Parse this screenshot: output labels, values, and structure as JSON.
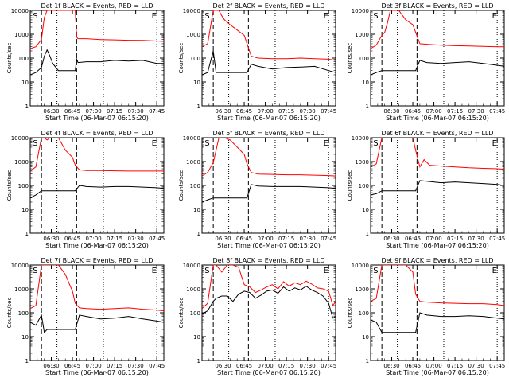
{
  "figure": {
    "ylabel": "Counts/sec",
    "xlabel": "Start Time (06-Mar-07 06:15:20)",
    "xticks": [
      "06:30",
      "06:45",
      "07:00",
      "07:15",
      "07:30",
      "07:45"
    ],
    "yticks": [
      "1",
      "10",
      "100",
      "1000",
      "10000"
    ],
    "marker_E": "E",
    "marker_S": "S"
  },
  "chart_data": [
    {
      "type": "line",
      "title": "Det 1f BLACK = Events, RED = LLD",
      "xlabel": "Start Time (06-Mar-07 06:15:20)",
      "ylabel": "Counts/sec",
      "ylim": [
        1,
        10000
      ],
      "yscale": "log",
      "series": [
        {
          "name": "Events",
          "color": "#000000",
          "x": [
            0,
            4,
            8,
            10,
            12,
            14,
            16,
            20,
            25,
            30,
            32,
            33,
            34,
            40,
            50,
            60,
            70,
            80,
            90,
            95
          ],
          "y": [
            20,
            25,
            40,
            120,
            220,
            120,
            60,
            30,
            30,
            30,
            30,
            90,
            65,
            70,
            70,
            80,
            75,
            80,
            60,
            60
          ]
        },
        {
          "name": "LLD",
          "color": "#ff0000",
          "x": [
            0,
            4,
            8,
            10,
            12,
            14,
            16,
            20,
            25,
            30,
            32,
            33,
            34,
            40,
            50,
            60,
            70,
            80,
            90,
            95
          ],
          "y": [
            250,
            300,
            600,
            5000,
            12000,
            12000,
            12000,
            12000,
            12000,
            12000,
            12000,
            750,
            650,
            650,
            600,
            580,
            560,
            550,
            520,
            500
          ]
        }
      ]
    },
    {
      "type": "line",
      "title": "Det 2f BLACK = Events, RED = LLD",
      "xlabel": "Start Time (06-Mar-07 06:15:20)",
      "ylabel": "Counts/sec",
      "ylim": [
        1,
        10000
      ],
      "yscale": "log",
      "series": [
        {
          "name": "Events",
          "color": "#000000",
          "x": [
            0,
            4,
            8,
            10,
            12,
            14,
            16,
            20,
            25,
            30,
            32,
            35,
            40,
            50,
            60,
            70,
            80,
            90,
            95
          ],
          "y": [
            20,
            25,
            200,
            25,
            25,
            25,
            25,
            25,
            25,
            25,
            25,
            55,
            45,
            35,
            40,
            42,
            45,
            30,
            25
          ]
        },
        {
          "name": "LLD",
          "color": "#ff0000",
          "x": [
            0,
            4,
            8,
            10,
            12,
            14,
            16,
            20,
            25,
            30,
            32,
            35,
            40,
            50,
            60,
            70,
            80,
            90,
            95
          ],
          "y": [
            300,
            400,
            12000,
            12000,
            12000,
            6000,
            4000,
            2500,
            1500,
            900,
            400,
            120,
            100,
            95,
            95,
            100,
            95,
            90,
            80
          ]
        }
      ]
    },
    {
      "type": "line",
      "title": "Det 3f BLACK = Events, RED = LLD",
      "xlabel": "Start Time (06-Mar-07 06:15:20)",
      "ylabel": "Counts/sec",
      "ylim": [
        1,
        10000
      ],
      "yscale": "log",
      "series": [
        {
          "name": "Events",
          "color": "#000000",
          "x": [
            0,
            4,
            8,
            10,
            12,
            14,
            16,
            20,
            25,
            30,
            32,
            35,
            40,
            50,
            60,
            70,
            80,
            90,
            95
          ],
          "y": [
            20,
            25,
            30,
            30,
            30,
            30,
            30,
            30,
            30,
            30,
            30,
            80,
            65,
            60,
            65,
            70,
            60,
            50,
            45
          ]
        },
        {
          "name": "LLD",
          "color": "#ff0000",
          "x": [
            0,
            4,
            8,
            10,
            12,
            14,
            16,
            20,
            25,
            30,
            32,
            35,
            40,
            50,
            60,
            70,
            80,
            90,
            95
          ],
          "y": [
            250,
            350,
            900,
            1200,
            3000,
            12000,
            12000,
            12000,
            4000,
            2500,
            1200,
            400,
            380,
            350,
            330,
            320,
            310,
            300,
            300
          ]
        }
      ]
    },
    {
      "type": "line",
      "title": "Det 4f BLACK = Events, RED = LLD",
      "xlabel": "Start Time (06-Mar-07 06:15:20)",
      "ylabel": "Counts/sec",
      "ylim": [
        1,
        10000
      ],
      "yscale": "log",
      "series": [
        {
          "name": "Events",
          "color": "#000000",
          "x": [
            0,
            4,
            8,
            10,
            12,
            14,
            16,
            20,
            25,
            30,
            32,
            35,
            40,
            50,
            60,
            70,
            80,
            90,
            95
          ],
          "y": [
            30,
            40,
            60,
            60,
            60,
            60,
            60,
            60,
            60,
            60,
            60,
            100,
            90,
            85,
            90,
            90,
            85,
            80,
            75
          ]
        },
        {
          "name": "LLD",
          "color": "#ff0000",
          "x": [
            0,
            4,
            8,
            10,
            12,
            14,
            16,
            20,
            25,
            30,
            32,
            35,
            40,
            50,
            60,
            70,
            80,
            90,
            95
          ],
          "y": [
            400,
            600,
            12000,
            12000,
            8000,
            12000,
            12000,
            12000,
            3000,
            1500,
            700,
            450,
            420,
            420,
            410,
            400,
            400,
            400,
            400
          ]
        }
      ]
    },
    {
      "type": "line",
      "title": "Det 5f BLACK = Events, RED = LLD",
      "xlabel": "Start Time (06-Mar-07 06:15:20)",
      "ylabel": "Counts/sec",
      "ylim": [
        1,
        10000
      ],
      "yscale": "log",
      "series": [
        {
          "name": "Events",
          "color": "#000000",
          "x": [
            0,
            4,
            8,
            10,
            12,
            14,
            16,
            20,
            25,
            30,
            32,
            35,
            40,
            50,
            60,
            70,
            80,
            90,
            95
          ],
          "y": [
            20,
            25,
            30,
            30,
            30,
            30,
            30,
            30,
            30,
            30,
            30,
            110,
            95,
            90,
            90,
            90,
            85,
            80,
            75
          ]
        },
        {
          "name": "LLD",
          "color": "#ff0000",
          "x": [
            0,
            4,
            8,
            10,
            12,
            14,
            16,
            20,
            25,
            30,
            32,
            35,
            40,
            50,
            60,
            70,
            80,
            90,
            95
          ],
          "y": [
            250,
            350,
            900,
            3000,
            12000,
            12000,
            12000,
            8000,
            4000,
            2000,
            800,
            350,
            300,
            290,
            280,
            280,
            270,
            260,
            250
          ]
        }
      ]
    },
    {
      "type": "line",
      "title": "Det 6f BLACK = Events, RED = LLD",
      "xlabel": "Start Time (06-Mar-07 06:15:20)",
      "ylabel": "Counts/sec",
      "ylim": [
        1,
        10000
      ],
      "yscale": "log",
      "series": [
        {
          "name": "Events",
          "color": "#000000",
          "x": [
            0,
            4,
            8,
            10,
            12,
            14,
            16,
            20,
            25,
            30,
            32,
            35,
            40,
            50,
            60,
            70,
            80,
            90,
            95
          ],
          "y": [
            40,
            45,
            60,
            60,
            60,
            60,
            60,
            60,
            60,
            60,
            60,
            160,
            150,
            130,
            140,
            130,
            120,
            110,
            100
          ]
        },
        {
          "name": "LLD",
          "color": "#ff0000",
          "x": [
            0,
            4,
            8,
            10,
            12,
            14,
            16,
            20,
            25,
            30,
            32,
            35,
            38,
            42,
            50,
            60,
            70,
            80,
            90,
            95
          ],
          "y": [
            600,
            800,
            12000,
            12000,
            12000,
            12000,
            12000,
            12000,
            12000,
            12000,
            3000,
            600,
            1200,
            700,
            650,
            600,
            550,
            520,
            500,
            480
          ]
        }
      ]
    },
    {
      "type": "line",
      "title": "Det 7f BLACK = Events, RED = LLD",
      "xlabel": "Start Time (06-Mar-07 06:15:20)",
      "ylabel": "Counts/sec",
      "ylim": [
        1,
        10000
      ],
      "yscale": "log",
      "series": [
        {
          "name": "Events",
          "color": "#000000",
          "x": [
            0,
            4,
            8,
            10,
            12,
            14,
            16,
            20,
            25,
            30,
            32,
            35,
            40,
            50,
            60,
            70,
            80,
            90,
            95
          ],
          "y": [
            40,
            30,
            80,
            15,
            20,
            20,
            20,
            20,
            20,
            20,
            20,
            80,
            70,
            55,
            60,
            70,
            55,
            45,
            40
          ]
        },
        {
          "name": "LLD",
          "color": "#ff0000",
          "x": [
            0,
            4,
            8,
            10,
            12,
            14,
            16,
            20,
            25,
            30,
            32,
            35,
            40,
            50,
            60,
            70,
            80,
            90,
            95
          ],
          "y": [
            150,
            200,
            12000,
            12000,
            12000,
            12000,
            12000,
            12000,
            4000,
            800,
            250,
            160,
            150,
            140,
            150,
            160,
            140,
            130,
            120
          ]
        }
      ]
    },
    {
      "type": "line",
      "title": "Det 8f BLACK = Events, RED = LLD",
      "xlabel": "Start Time (06-Mar-07 06:15:20)",
      "ylabel": "Counts/sec",
      "ylim": [
        1,
        10000
      ],
      "yscale": "log",
      "series": [
        {
          "name": "Events",
          "color": "#000000",
          "x": [
            0,
            4,
            8,
            10,
            14,
            18,
            22,
            26,
            30,
            34,
            38,
            42,
            46,
            50,
            54,
            58,
            62,
            66,
            70,
            74,
            78,
            82,
            86,
            90,
            93,
            95
          ],
          "y": [
            90,
            120,
            300,
            400,
            500,
            500,
            300,
            600,
            800,
            700,
            400,
            550,
            800,
            900,
            650,
            1200,
            800,
            1100,
            900,
            1300,
            900,
            700,
            500,
            250,
            60,
            70
          ]
        },
        {
          "name": "LLD",
          "color": "#ff0000",
          "x": [
            0,
            4,
            8,
            10,
            14,
            18,
            22,
            26,
            30,
            34,
            38,
            42,
            46,
            50,
            54,
            58,
            62,
            66,
            70,
            74,
            78,
            82,
            86,
            90,
            93,
            95
          ],
          "y": [
            150,
            250,
            12000,
            12000,
            5000,
            12000,
            12000,
            8000,
            1500,
            1200,
            700,
            900,
            1200,
            1500,
            1000,
            2000,
            1300,
            1800,
            1500,
            2100,
            1600,
            1100,
            1000,
            800,
            200,
            300
          ]
        }
      ]
    },
    {
      "type": "line",
      "title": "Det 9f BLACK = Events, RED = LLD",
      "xlabel": "Start Time (06-Mar-07 06:15:20)",
      "ylabel": "Counts/sec",
      "ylim": [
        1,
        10000
      ],
      "yscale": "log",
      "series": [
        {
          "name": "Events",
          "color": "#000000",
          "x": [
            0,
            4,
            8,
            10,
            12,
            14,
            16,
            20,
            25,
            30,
            32,
            35,
            40,
            50,
            60,
            70,
            80,
            90,
            95
          ],
          "y": [
            50,
            40,
            15,
            15,
            15,
            15,
            15,
            15,
            15,
            15,
            15,
            100,
            80,
            70,
            70,
            75,
            70,
            60,
            55
          ]
        },
        {
          "name": "LLD",
          "color": "#ff0000",
          "x": [
            0,
            4,
            8,
            10,
            12,
            14,
            16,
            20,
            25,
            30,
            32,
            35,
            40,
            50,
            60,
            70,
            80,
            90,
            95
          ],
          "y": [
            300,
            400,
            12000,
            12000,
            12000,
            12000,
            12000,
            12000,
            12000,
            5000,
            600,
            300,
            280,
            260,
            250,
            240,
            240,
            220,
            200
          ]
        }
      ]
    }
  ]
}
